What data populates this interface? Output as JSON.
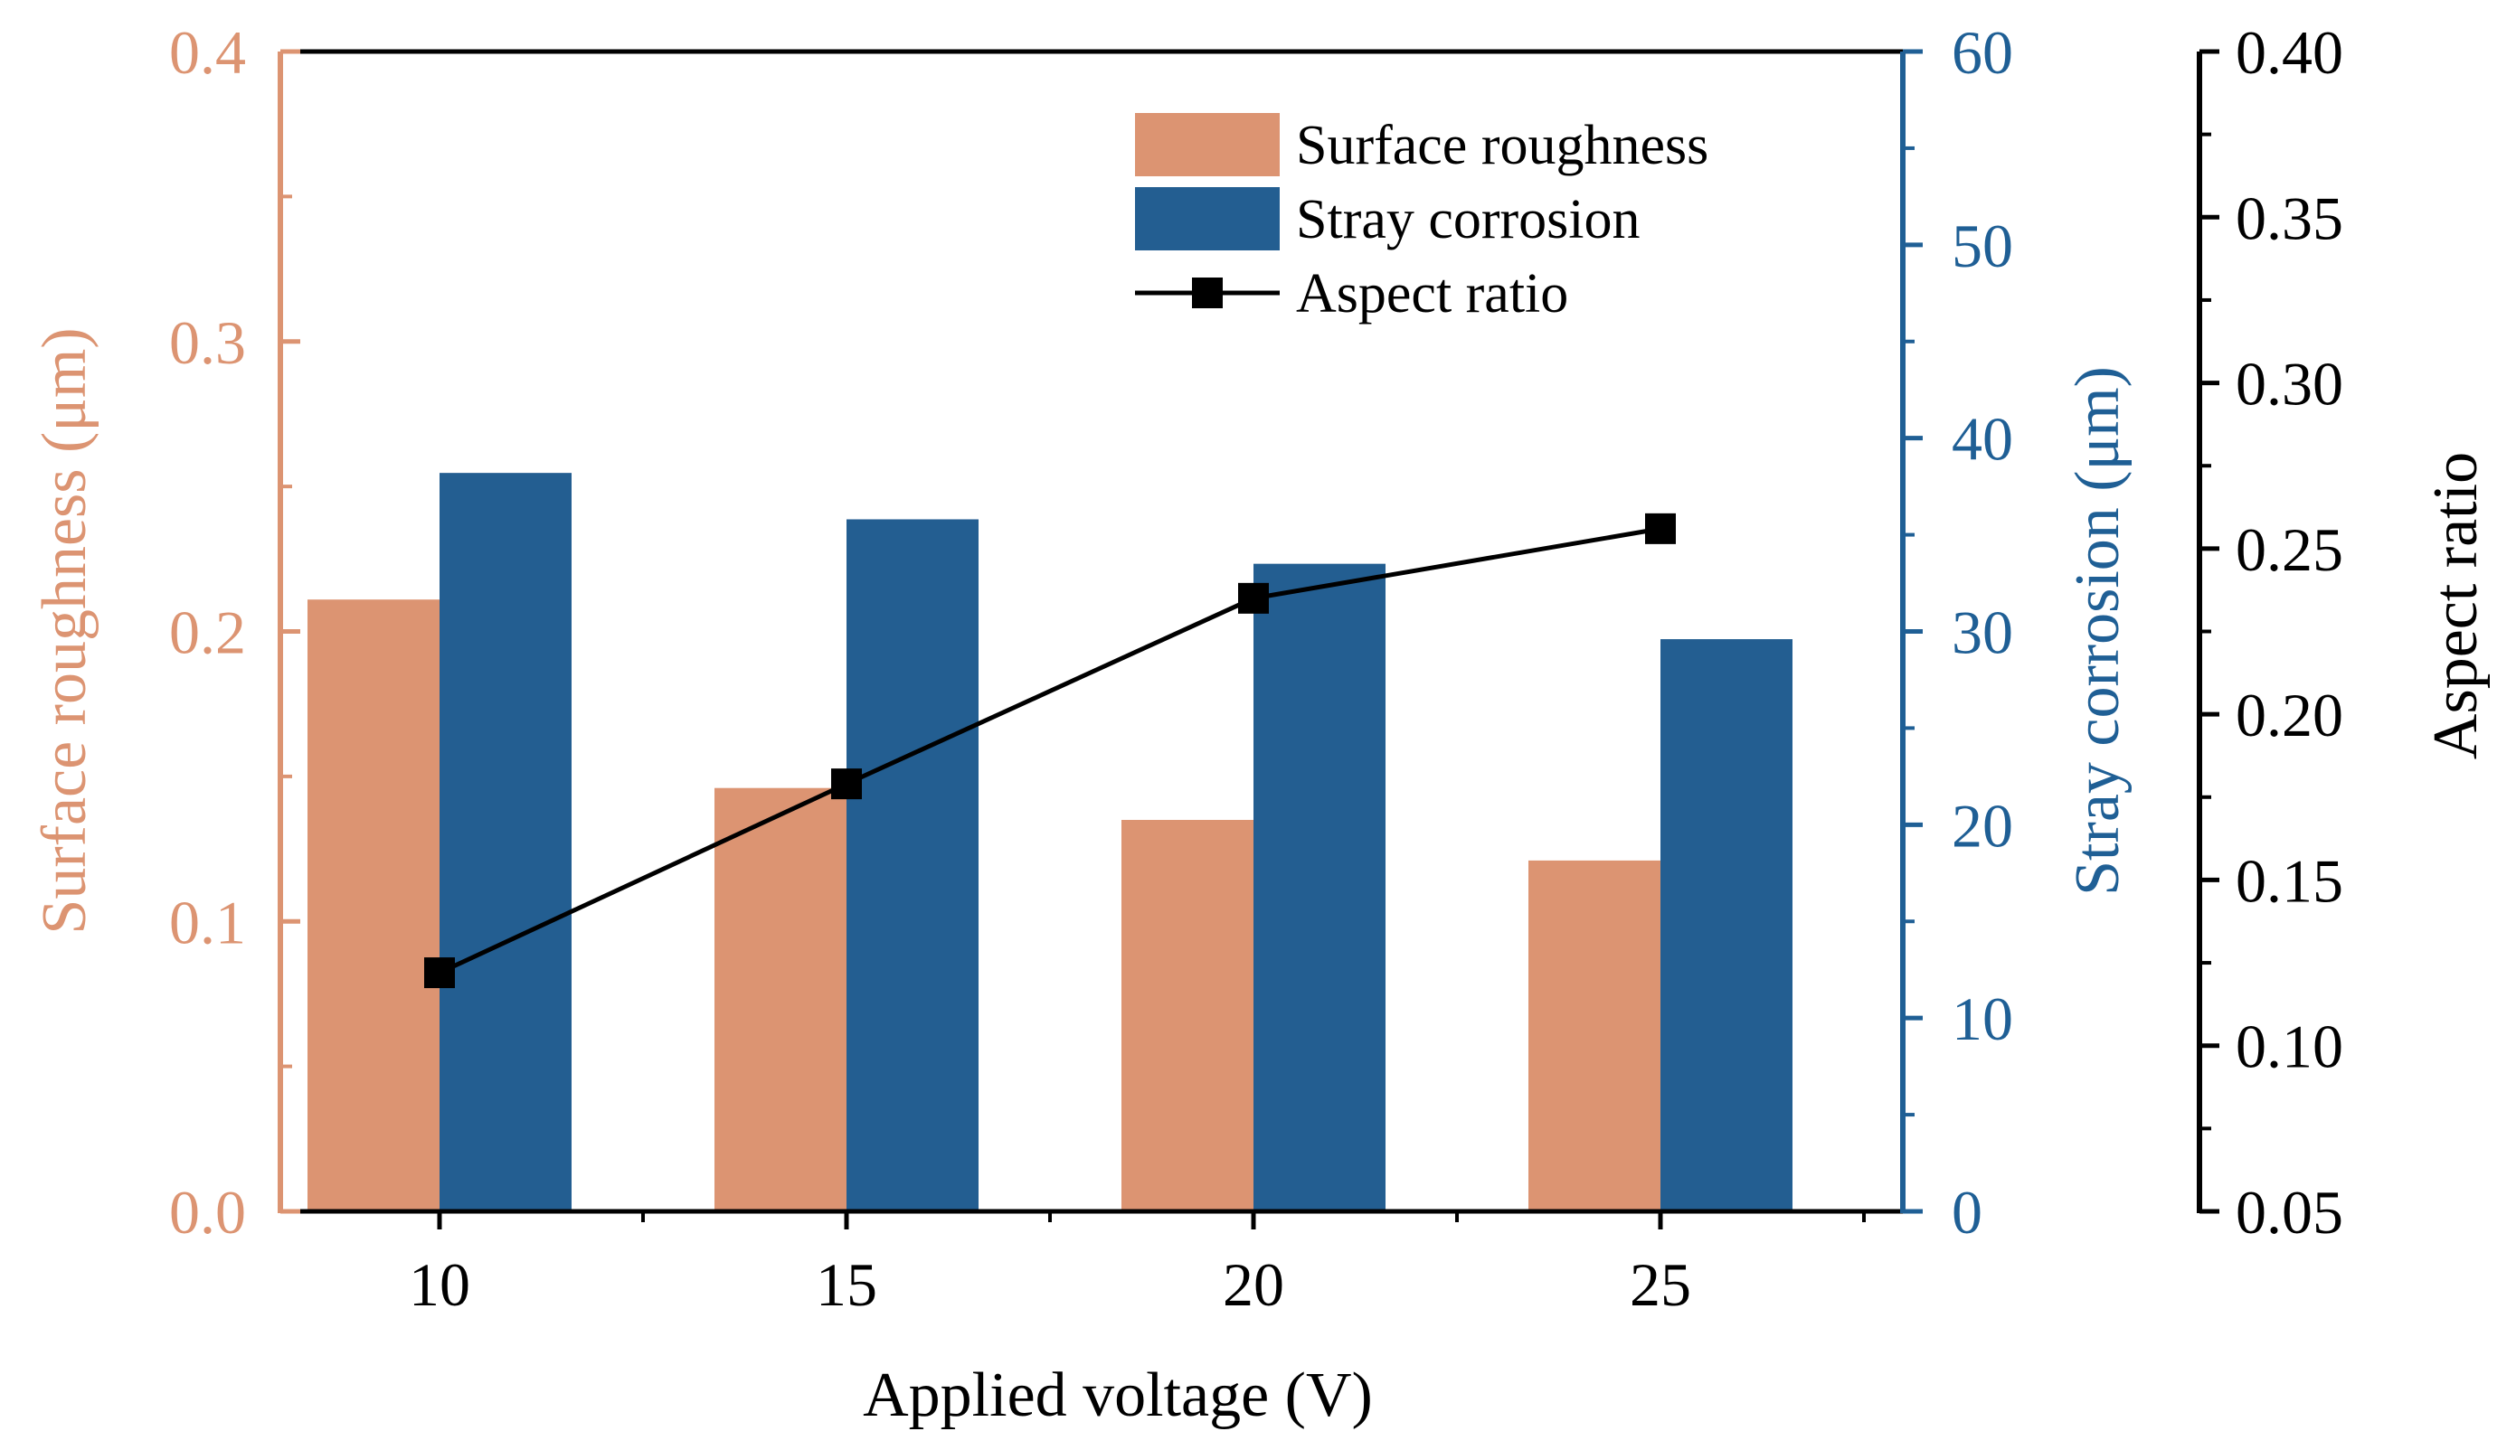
{
  "chart_data": {
    "type": "bar",
    "categories": [
      "10",
      "15",
      "20",
      "25"
    ],
    "xlabel": "Applied voltage (V)",
    "series": [
      {
        "name": "Surface roughness",
        "kind": "bar",
        "axis": "left",
        "color": "#DC9472",
        "values": [
          0.211,
          0.146,
          0.135,
          0.121
        ]
      },
      {
        "name": "Stray corrosion",
        "kind": "bar",
        "axis": "right1",
        "color": "#235E91",
        "values": [
          38.2,
          35.8,
          33.5,
          29.6
        ]
      },
      {
        "name": "Aspect ratio",
        "kind": "line",
        "marker": "square",
        "axis": "right2",
        "color": "#000000",
        "values": [
          0.122,
          0.179,
          0.235,
          0.256
        ]
      }
    ],
    "axes": {
      "left": {
        "label": "Surface roughness (μm)",
        "ylim": [
          0.0,
          0.4
        ],
        "ticks": [
          "0.0",
          "0.1",
          "0.2",
          "0.3",
          "0.4"
        ],
        "color": "#DC9472"
      },
      "right1": {
        "label": "Stray corrosion  (μm)",
        "ylim": [
          0,
          60
        ],
        "ticks": [
          "0",
          "10",
          "20",
          "30",
          "40",
          "50",
          "60"
        ],
        "color": "#1F5F95"
      },
      "right2": {
        "label": "Aspect ratio",
        "ylim": [
          0.05,
          0.4
        ],
        "ticks": [
          "0.05",
          "0.10",
          "0.15",
          "0.20",
          "0.25",
          "0.30",
          "0.35",
          "0.40"
        ],
        "color": "#000000"
      }
    },
    "legend": {
      "placement": "top-center",
      "entries": [
        "Surface roughness",
        "Stray corrosion",
        "Aspect ratio"
      ]
    }
  }
}
